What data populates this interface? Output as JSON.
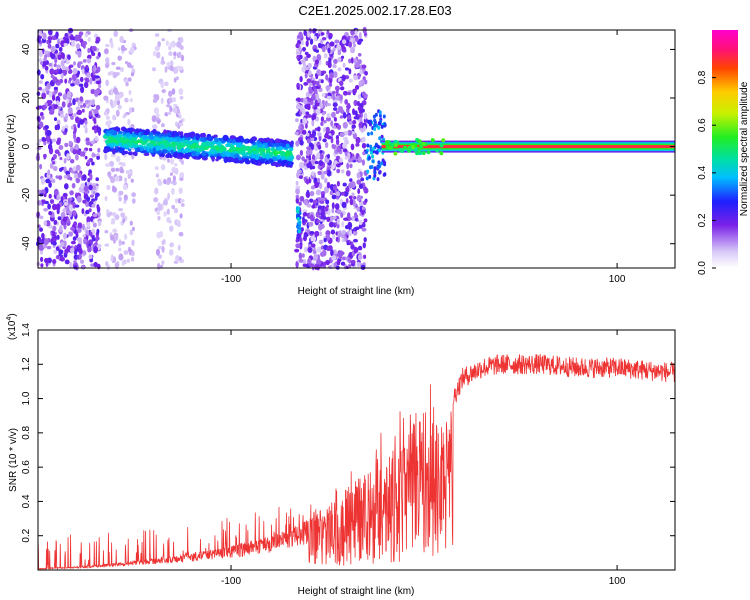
{
  "title": "C2E1.2025.002.17.28.E03",
  "chart_data": [
    {
      "type": "heatmap",
      "xlabel": "Height of straight line (km)",
      "ylabel": "Frequency (Hz)",
      "xlim": [
        -200,
        130
      ],
      "ylim": [
        -50,
        48
      ],
      "xticks": [
        -100,
        100
      ],
      "yticks": [
        -40,
        -20,
        0,
        20,
        40
      ],
      "colorbar": {
        "label": "Normalized spectral amplitude",
        "range": [
          0,
          1
        ],
        "ticks": [
          0.0,
          0.2,
          0.4,
          0.6,
          0.8
        ],
        "tick_labels": [
          "0.0",
          "0.2",
          "0.4",
          "0.6",
          "0.8"
        ]
      },
      "features": {
        "noise_regions_km": [
          [
            -200,
            -168
          ],
          [
            -165,
            -150
          ],
          [
            -140,
            -125
          ],
          [
            -66,
            -30
          ]
        ],
        "drifting_band": {
          "x_start": -165,
          "x_end": -68,
          "freq_start": 3,
          "freq_end": -3
        },
        "spike_at_km": {
          "x": -65,
          "freq_range": [
            -35,
            -25
          ]
        },
        "steady_line": {
          "x_start": -22,
          "x_end": 130,
          "freq": 0
        }
      }
    },
    {
      "type": "line",
      "xlabel": "Height of straight line (km)",
      "ylabel": "SNR (10 * v/v)",
      "y_multiplier_label": "(x10",
      "y_multiplier_exp": "4",
      "y_multiplier_close": ")",
      "xlim": [
        -200,
        130
      ],
      "ylim": [
        0,
        1.4
      ],
      "xticks": [
        -100,
        100
      ],
      "yticks": [
        0.2,
        0.4,
        0.6,
        0.8,
        1.0,
        1.2,
        1.4
      ],
      "ytick_labels": [
        "0.2",
        "0.4",
        "0.6",
        "0.8",
        "1.0",
        "1.2",
        "1.4"
      ],
      "series_color": "#ee3333",
      "series": [
        {
          "x": [
            -200,
            -180,
            -160,
            -140,
            -120,
            -100,
            -80,
            -60,
            -45,
            -35,
            -25,
            -15,
            -10,
            -5,
            0,
            5,
            10,
            15,
            20,
            30,
            40,
            60,
            80,
            100,
            130
          ],
          "values": [
            0.01,
            0.02,
            0.04,
            0.07,
            0.1,
            0.14,
            0.2,
            0.3,
            0.42,
            0.55,
            0.65,
            0.75,
            0.85,
            0.95,
            0.95,
            0.9,
            0.85,
            1.0,
            1.12,
            1.18,
            1.2,
            1.2,
            1.18,
            1.18,
            1.15
          ]
        }
      ]
    }
  ]
}
